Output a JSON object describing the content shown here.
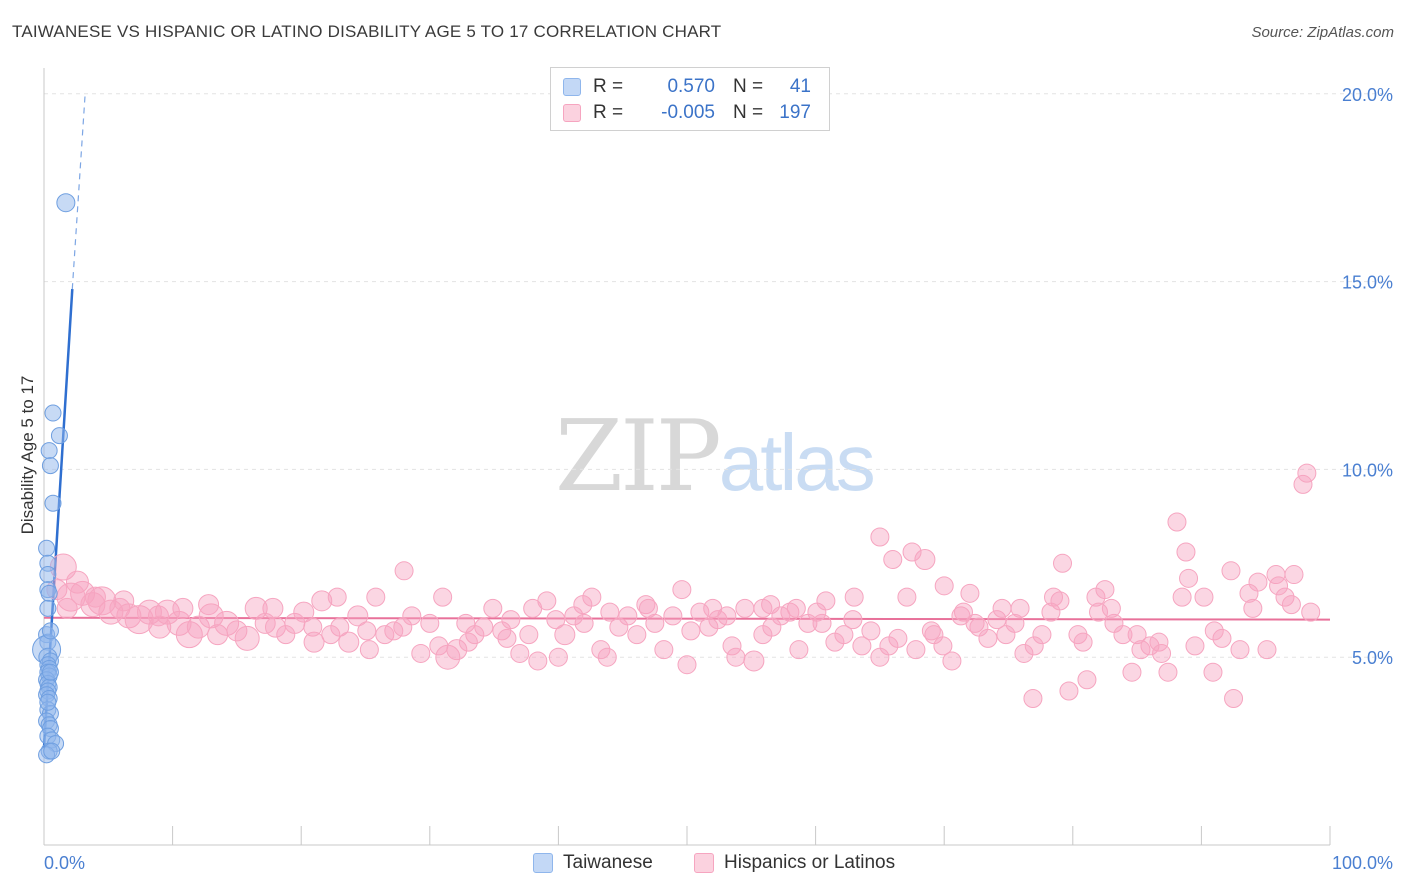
{
  "title": "TAIWANESE VS HISPANIC OR LATINO DISABILITY AGE 5 TO 17 CORRELATION CHART",
  "source": "Source: ZipAtlas.com",
  "watermark": {
    "zip": "ZIP",
    "atlas": "atlas"
  },
  "legend": {
    "rows": [
      {
        "r_label": "R =",
        "r_value": "0.570",
        "n_label": "N =",
        "n_value": "41",
        "color": "#8fb6ec",
        "text_color": "#3b73c8"
      },
      {
        "r_label": "R =",
        "r_value": "-0.005",
        "n_label": "N =",
        "n_value": "197",
        "color": "#f6a5c0",
        "text_color": "#3b73c8"
      }
    ]
  },
  "bottom_legend": [
    "Taiwanese",
    "Hispanics or Latinos"
  ],
  "chart_data": {
    "type": "scatter",
    "title": "TAIWANESE VS HISPANIC OR LATINO DISABILITY AGE 5 TO 17 CORRELATION CHART",
    "xlabel": "",
    "ylabel": "Disability Age 5 to 17",
    "xlim": [
      0,
      100
    ],
    "ylim": [
      0,
      20.5
    ],
    "x_tick_labels": [
      "0.0%",
      "100.0%"
    ],
    "y_ticks": [
      5,
      10,
      15,
      20
    ],
    "y_tick_labels": [
      "5.0%",
      "10.0%",
      "15.0%",
      "20.0%"
    ],
    "grid": true,
    "colors": {
      "taiwanese": "#8fb6ec",
      "taiwanese_line": "#2f6fd0",
      "hispanic": "#f6a5c0",
      "hispanic_line": "#e8719a"
    },
    "series": [
      {
        "name": "Taiwanese",
        "trend": {
          "x0": 0.0,
          "y0": 2.6,
          "x1": 2.2,
          "y1": 14.8,
          "dash_to": [
            3.2,
            20.0
          ]
        },
        "points": [
          [
            1.7,
            17.1,
            9
          ],
          [
            0.7,
            11.5,
            8
          ],
          [
            1.2,
            10.9,
            8
          ],
          [
            0.4,
            10.5,
            8
          ],
          [
            0.5,
            10.1,
            8
          ],
          [
            0.7,
            9.1,
            8
          ],
          [
            0.2,
            7.9,
            8
          ],
          [
            0.3,
            7.5,
            8
          ],
          [
            0.3,
            7.2,
            8
          ],
          [
            0.3,
            6.8,
            8
          ],
          [
            0.4,
            6.7,
            8
          ],
          [
            0.2,
            5.6,
            8
          ],
          [
            0.3,
            5.4,
            8
          ],
          [
            0.2,
            5.2,
            14
          ],
          [
            0.3,
            5.0,
            9
          ],
          [
            0.5,
            4.9,
            8
          ],
          [
            0.3,
            4.8,
            8
          ],
          [
            0.4,
            4.7,
            8
          ],
          [
            0.3,
            4.6,
            8
          ],
          [
            0.4,
            4.5,
            8
          ],
          [
            0.2,
            4.4,
            8
          ],
          [
            0.3,
            4.3,
            8
          ],
          [
            0.4,
            4.2,
            8
          ],
          [
            0.3,
            4.1,
            8
          ],
          [
            0.2,
            4.0,
            8
          ],
          [
            0.4,
            3.9,
            8
          ],
          [
            0.3,
            3.6,
            8
          ],
          [
            0.5,
            3.5,
            8
          ],
          [
            0.2,
            3.3,
            8
          ],
          [
            0.4,
            3.2,
            8
          ],
          [
            0.5,
            3.1,
            8
          ],
          [
            0.3,
            2.9,
            8
          ],
          [
            0.6,
            2.8,
            8
          ],
          [
            0.9,
            2.7,
            8
          ],
          [
            0.4,
            2.5,
            8
          ],
          [
            0.2,
            2.4,
            8
          ],
          [
            0.6,
            2.5,
            8
          ],
          [
            0.3,
            6.3,
            8
          ],
          [
            0.5,
            4.6,
            8
          ],
          [
            0.3,
            3.8,
            8
          ],
          [
            0.5,
            5.7,
            8
          ]
        ]
      },
      {
        "name": "Hispanics or Latinos",
        "trend": {
          "x0": 0.0,
          "y0": 6.05,
          "x1": 100.0,
          "y1": 6.0
        },
        "points": [
          [
            1.5,
            7.4,
            13
          ],
          [
            1.0,
            6.8,
            10
          ],
          [
            2.1,
            6.6,
            14
          ],
          [
            3.0,
            6.7,
            12
          ],
          [
            3.8,
            6.4,
            12
          ],
          [
            4.5,
            6.5,
            14
          ],
          [
            5.2,
            6.2,
            12
          ],
          [
            5.9,
            6.3,
            10
          ],
          [
            6.6,
            6.1,
            12
          ],
          [
            7.4,
            6.0,
            14
          ],
          [
            8.2,
            6.2,
            12
          ],
          [
            8.9,
            6.1,
            10
          ],
          [
            9.6,
            6.2,
            12
          ],
          [
            10.5,
            5.9,
            12
          ],
          [
            11.3,
            5.6,
            13
          ],
          [
            12.0,
            5.8,
            11
          ],
          [
            12.8,
            6.4,
            10
          ],
          [
            13.5,
            5.6,
            10
          ],
          [
            14.2,
            5.9,
            12
          ],
          [
            15.0,
            5.7,
            10
          ],
          [
            15.8,
            5.5,
            12
          ],
          [
            16.5,
            6.3,
            11
          ],
          [
            17.2,
            5.9,
            10
          ],
          [
            18.0,
            5.8,
            10
          ],
          [
            18.8,
            5.6,
            9
          ],
          [
            19.5,
            5.9,
            10
          ],
          [
            20.2,
            6.2,
            10
          ],
          [
            20.9,
            5.8,
            9
          ],
          [
            21.6,
            6.5,
            10
          ],
          [
            22.3,
            5.6,
            9
          ],
          [
            23.0,
            5.8,
            9
          ],
          [
            23.7,
            5.4,
            10
          ],
          [
            24.4,
            6.1,
            10
          ],
          [
            25.1,
            5.7,
            9
          ],
          [
            25.8,
            6.6,
            9
          ],
          [
            26.5,
            5.6,
            9
          ],
          [
            27.2,
            5.7,
            9
          ],
          [
            27.9,
            5.8,
            9
          ],
          [
            28.6,
            6.1,
            9
          ],
          [
            29.3,
            5.1,
            9
          ],
          [
            30.0,
            5.9,
            9
          ],
          [
            30.7,
            5.3,
            9
          ],
          [
            31.4,
            5.0,
            12
          ],
          [
            32.1,
            5.2,
            10
          ],
          [
            32.8,
            5.9,
            9
          ],
          [
            33.5,
            5.6,
            9
          ],
          [
            34.2,
            5.8,
            9
          ],
          [
            34.9,
            6.3,
            9
          ],
          [
            35.6,
            5.7,
            9
          ],
          [
            36.3,
            6.0,
            9
          ],
          [
            37.0,
            5.1,
            9
          ],
          [
            37.7,
            5.6,
            9
          ],
          [
            38.4,
            4.9,
            9
          ],
          [
            39.1,
            6.5,
            9
          ],
          [
            39.8,
            6.0,
            9
          ],
          [
            40.5,
            5.6,
            10
          ],
          [
            41.2,
            6.1,
            9
          ],
          [
            41.9,
            6.4,
            9
          ],
          [
            42.6,
            6.6,
            9
          ],
          [
            43.3,
            5.2,
            9
          ],
          [
            44.0,
            6.2,
            9
          ],
          [
            44.7,
            5.8,
            9
          ],
          [
            45.4,
            6.1,
            9
          ],
          [
            46.1,
            5.6,
            9
          ],
          [
            46.8,
            6.4,
            9
          ],
          [
            47.5,
            5.9,
            9
          ],
          [
            48.2,
            5.2,
            9
          ],
          [
            48.9,
            6.1,
            9
          ],
          [
            49.6,
            6.8,
            9
          ],
          [
            50.3,
            5.7,
            9
          ],
          [
            51.0,
            6.2,
            9
          ],
          [
            51.7,
            5.8,
            9
          ],
          [
            52.4,
            6.0,
            9
          ],
          [
            53.1,
            6.1,
            9
          ],
          [
            53.8,
            5.0,
            9
          ],
          [
            54.5,
            6.3,
            9
          ],
          [
            55.2,
            4.9,
            10
          ],
          [
            55.9,
            5.6,
            9
          ],
          [
            56.6,
            5.8,
            9
          ],
          [
            57.3,
            6.1,
            9
          ],
          [
            58.0,
            6.2,
            9
          ],
          [
            58.7,
            5.2,
            9
          ],
          [
            59.4,
            5.9,
            9
          ],
          [
            60.1,
            6.2,
            9
          ],
          [
            60.8,
            6.5,
            9
          ],
          [
            61.5,
            5.4,
            9
          ],
          [
            62.2,
            5.6,
            9
          ],
          [
            62.9,
            6.0,
            9
          ],
          [
            63.6,
            5.3,
            9
          ],
          [
            64.3,
            5.7,
            9
          ],
          [
            65.0,
            5.0,
            9
          ],
          [
            65.7,
            5.3,
            9
          ],
          [
            66.4,
            5.5,
            9
          ],
          [
            67.1,
            6.6,
            9
          ],
          [
            67.8,
            5.2,
            9
          ],
          [
            68.5,
            7.6,
            10
          ],
          [
            69.2,
            5.6,
            9
          ],
          [
            69.9,
            5.3,
            9
          ],
          [
            70.6,
            4.9,
            9
          ],
          [
            71.3,
            6.1,
            9
          ],
          [
            72.0,
            6.7,
            9
          ],
          [
            72.7,
            5.8,
            9
          ],
          [
            73.4,
            5.5,
            9
          ],
          [
            74.1,
            6.0,
            9
          ],
          [
            74.8,
            5.6,
            9
          ],
          [
            75.5,
            5.9,
            9
          ],
          [
            76.2,
            5.1,
            9
          ],
          [
            76.9,
            3.9,
            9
          ],
          [
            77.6,
            5.6,
            9
          ],
          [
            78.3,
            6.2,
            9
          ],
          [
            79.0,
            6.5,
            9
          ],
          [
            79.7,
            4.1,
            9
          ],
          [
            80.4,
            5.6,
            9
          ],
          [
            81.1,
            4.4,
            9
          ],
          [
            81.8,
            6.6,
            9
          ],
          [
            82.5,
            6.8,
            9
          ],
          [
            83.2,
            5.9,
            9
          ],
          [
            83.9,
            5.6,
            9
          ],
          [
            84.6,
            4.6,
            9
          ],
          [
            85.3,
            5.2,
            9
          ],
          [
            86.0,
            5.3,
            9
          ],
          [
            86.7,
            5.4,
            9
          ],
          [
            87.4,
            4.6,
            9
          ],
          [
            88.1,
            8.6,
            9
          ],
          [
            88.8,
            7.8,
            9
          ],
          [
            89.5,
            5.3,
            9
          ],
          [
            90.2,
            6.6,
            9
          ],
          [
            90.9,
            4.6,
            9
          ],
          [
            91.6,
            5.5,
            9
          ],
          [
            92.3,
            7.3,
            9
          ],
          [
            93.0,
            5.2,
            9
          ],
          [
            93.7,
            6.7,
            9
          ],
          [
            94.4,
            7.0,
            9
          ],
          [
            95.1,
            5.2,
            9
          ],
          [
            95.8,
            7.2,
            9
          ],
          [
            96.5,
            6.6,
            9
          ],
          [
            97.2,
            7.2,
            9
          ],
          [
            97.9,
            9.6,
            9
          ],
          [
            98.2,
            9.9,
            9
          ],
          [
            1.8,
            6.3,
            10
          ],
          [
            2.6,
            7.0,
            11
          ],
          [
            4.0,
            6.6,
            10
          ],
          [
            6.2,
            6.5,
            10
          ],
          [
            9.0,
            5.8,
            11
          ],
          [
            10.8,
            6.3,
            10
          ],
          [
            13.0,
            6.1,
            12
          ],
          [
            17.8,
            6.3,
            10
          ],
          [
            21.0,
            5.4,
            10
          ],
          [
            22.8,
            6.6,
            9
          ],
          [
            25.3,
            5.2,
            9
          ],
          [
            28.0,
            7.3,
            9
          ],
          [
            31.0,
            6.6,
            9
          ],
          [
            33.0,
            5.4,
            9
          ],
          [
            36.0,
            5.5,
            9
          ],
          [
            38.0,
            6.3,
            9
          ],
          [
            40.0,
            5.0,
            9
          ],
          [
            42.0,
            5.9,
            9
          ],
          [
            43.8,
            5.0,
            9
          ],
          [
            47.0,
            6.3,
            9
          ],
          [
            50.0,
            4.8,
            9
          ],
          [
            52.0,
            6.3,
            9
          ],
          [
            53.5,
            5.3,
            9
          ],
          [
            55.9,
            6.3,
            9
          ],
          [
            56.5,
            6.4,
            9
          ],
          [
            58.5,
            6.3,
            9
          ],
          [
            60.5,
            5.9,
            9
          ],
          [
            63.0,
            6.6,
            9
          ],
          [
            65.0,
            8.2,
            9
          ],
          [
            66.0,
            7.6,
            9
          ],
          [
            67.5,
            7.8,
            9
          ],
          [
            69.0,
            5.7,
            9
          ],
          [
            70.0,
            6.9,
            9
          ],
          [
            71.5,
            6.2,
            9
          ],
          [
            72.4,
            5.9,
            9
          ],
          [
            74.5,
            6.3,
            9
          ],
          [
            75.9,
            6.3,
            9
          ],
          [
            77.0,
            5.3,
            9
          ],
          [
            78.5,
            6.6,
            9
          ],
          [
            79.2,
            7.5,
            9
          ],
          [
            80.8,
            5.4,
            9
          ],
          [
            82.0,
            6.2,
            9
          ],
          [
            83.0,
            6.3,
            9
          ],
          [
            85.0,
            5.6,
            9
          ],
          [
            86.9,
            5.1,
            9
          ],
          [
            88.5,
            6.6,
            9
          ],
          [
            89.0,
            7.1,
            9
          ],
          [
            91.0,
            5.7,
            9
          ],
          [
            92.5,
            3.9,
            9
          ],
          [
            94.0,
            6.3,
            9
          ],
          [
            96.0,
            6.9,
            9
          ],
          [
            97.0,
            6.4,
            9
          ],
          [
            98.5,
            6.2,
            9
          ]
        ]
      }
    ]
  }
}
